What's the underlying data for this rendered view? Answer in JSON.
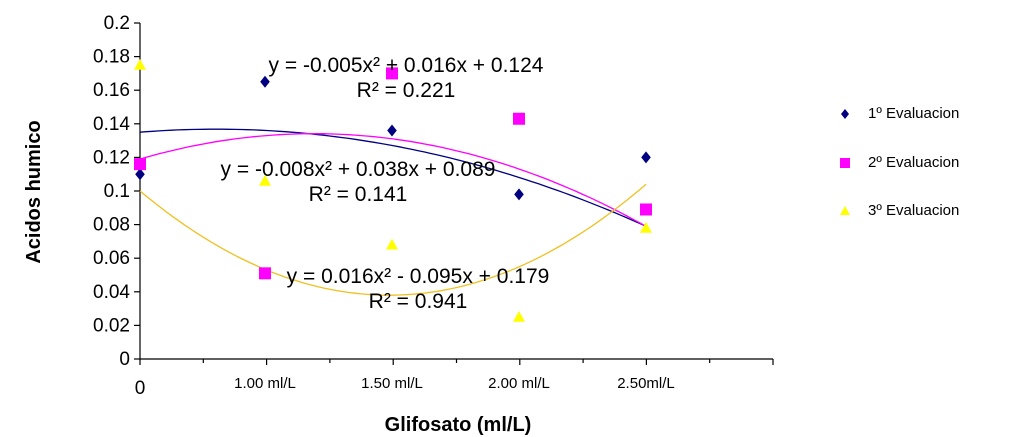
{
  "chart_data": {
    "type": "scatter",
    "xlabel": "Glifosato  (ml/L)",
    "ylabel": "Acidos humico",
    "categories": [
      "0",
      "1.00 ml/L",
      "1.50 ml/L",
      "2.00 ml/L",
      "2.50ml/L"
    ],
    "x": [
      0,
      1,
      1.5,
      2,
      2.5
    ],
    "xlim": [
      0,
      5
    ],
    "ylim": [
      0,
      0.2
    ],
    "yticks": [
      "0",
      "0.02",
      "0.04",
      "0.06",
      "0.08",
      "0.1",
      "0.12",
      "0.14",
      "0.16",
      "0.18",
      "0.2"
    ],
    "grid": false,
    "legend_position": "right",
    "series": [
      {
        "name": "1º Evaluacion",
        "color": "#000080",
        "marker": "diamond",
        "values": [
          0.11,
          0.165,
          0.136,
          0.098,
          0.12
        ],
        "trend": {
          "a": -0.005,
          "b": 0.016,
          "c": 0.124
        },
        "equation": "y = -0.005x² + 0.016x + 0.124",
        "r2": "R² = 0.221"
      },
      {
        "name": "2º Evaluacion",
        "color": "#ff00ff",
        "marker": "square",
        "values": [
          0.116,
          0.051,
          0.17,
          0.143,
          0.089
        ],
        "trend": {
          "a": -0.008,
          "b": 0.038,
          "c": 0.089
        },
        "equation": "y = -0.008x² + 0.038x + 0.089",
        "r2": "R² = 0.141"
      },
      {
        "name": "3º Evaluacion",
        "color": "#ffff00",
        "trend_color": "#f0c020",
        "marker": "triangle",
        "values": [
          0.175,
          0.106,
          0.068,
          0.025,
          0.078
        ],
        "trend": {
          "a": 0.016,
          "b": -0.095,
          "c": 0.179
        },
        "equation": "y = 0.016x² - 0.095x + 0.179",
        "r2": "R² = 0.941"
      }
    ]
  }
}
